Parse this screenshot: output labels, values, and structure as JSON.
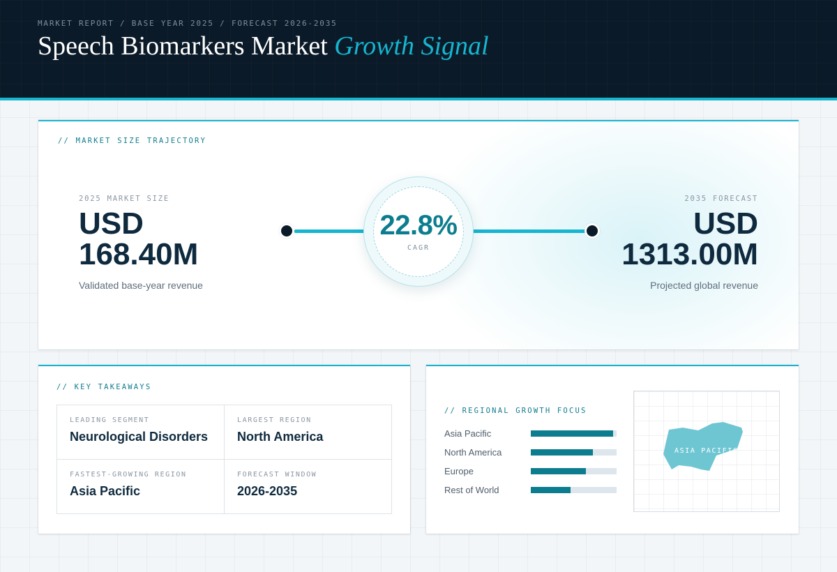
{
  "header": {
    "kicker": "MARKET REPORT / BASE YEAR 2025 / FORECAST 2026-2035",
    "title_main": "Speech Biomarkers Market",
    "title_accent": "Growth Signal"
  },
  "trajectory": {
    "section_label": "// MARKET SIZE TRAJECTORY",
    "start": {
      "label": "2025 MARKET SIZE",
      "currency": "USD",
      "value": "168.40M",
      "note": "Validated base-year revenue"
    },
    "end": {
      "label": "2035 FORECAST",
      "currency": "USD",
      "value": "1313.00M",
      "note": "Projected global revenue"
    },
    "cagr": {
      "value": "22.8%",
      "label": "CAGR"
    }
  },
  "takeaways": {
    "section_label": "// KEY TAKEAWAYS",
    "items": [
      {
        "label": "LEADING SEGMENT",
        "value": "Neurological Disorders"
      },
      {
        "label": "LARGEST REGION",
        "value": "North America"
      },
      {
        "label": "FASTEST-GROWING REGION",
        "value": "Asia Pacific"
      },
      {
        "label": "FORECAST WINDOW",
        "value": "2026-2035"
      }
    ]
  },
  "regional": {
    "section_label": "// REGIONAL GROWTH FOCUS",
    "bars": [
      {
        "name": "Asia Pacific",
        "level": 0.96
      },
      {
        "name": "North America",
        "level": 0.72
      },
      {
        "name": "Europe",
        "level": 0.64
      },
      {
        "name": "Rest of World",
        "level": 0.46
      }
    ],
    "map_label": "ASIA PACIFIC"
  },
  "colors": {
    "accent": "#16b5d0",
    "accent_dark": "#0b7d8e",
    "header_bg": "#0b1a28",
    "text_dark": "#0f2a3e",
    "map_fill": "#6ec6d3"
  }
}
